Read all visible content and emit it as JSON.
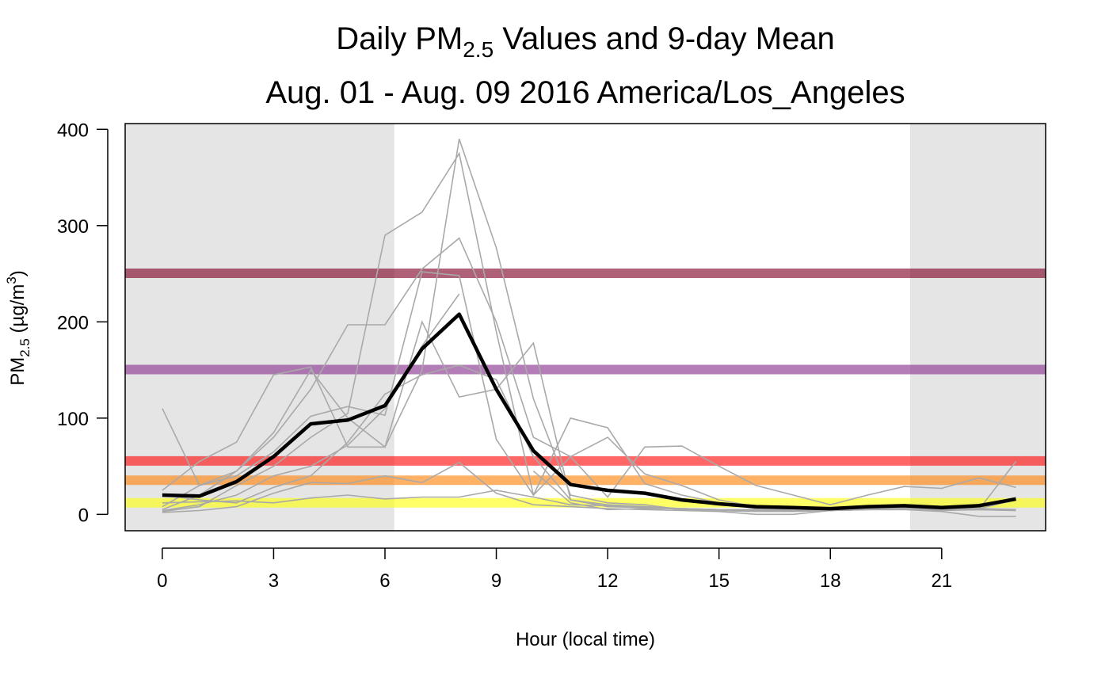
{
  "chart_data": {
    "type": "line",
    "title": {
      "line1_pre": "Daily PM",
      "line1_sub": "2.5",
      "line1_post": " Values and 9-day Mean",
      "line2": "Aug. 01 -  Aug. 09 2016 America/Los_Angeles"
    },
    "xlabel": "Hour (local time)",
    "ylabel": {
      "pre": "PM",
      "sub": "2.5",
      "unit_pre": " (µg/m",
      "unit_sup": "3",
      "unit_post": ")"
    },
    "xlim": [
      -1,
      23.8
    ],
    "ylim": [
      -17,
      406
    ],
    "x_ticks": [
      0,
      3,
      6,
      9,
      12,
      15,
      18,
      21
    ],
    "y_ticks": [
      0,
      100,
      200,
      300,
      400
    ],
    "night_shading": [
      {
        "from": -1,
        "to": 6.25
      },
      {
        "from": 20.15,
        "to": 23.8
      }
    ],
    "aqi_lines": [
      {
        "value": 250.5,
        "color": "#7e0023",
        "opacity": 0.62
      },
      {
        "value": 150.5,
        "color": "#8f3f97",
        "opacity": 0.68
      },
      {
        "value": 55.5,
        "color": "#ff0000",
        "opacity": 0.6
      },
      {
        "value": 35.5,
        "color": "#ff7e00",
        "opacity": 0.6
      },
      {
        "value": 12,
        "color": "#ffff00",
        "opacity": 0.6
      }
    ],
    "hours": [
      0,
      1,
      2,
      3,
      4,
      5,
      6,
      7,
      8,
      9,
      10,
      11,
      12,
      13,
      14,
      15,
      16,
      17,
      18,
      19,
      20,
      21,
      22,
      23
    ],
    "daily_series": [
      [
        110,
        30,
        45,
        85,
        150,
        100,
        70,
        200,
        122,
        130,
        178,
        15,
        10,
        8,
        6,
        5,
        4,
        4,
        5,
        6,
        6,
        5,
        5,
        5
      ],
      [
        25,
        55,
        75,
        145,
        153,
        70,
        70,
        150,
        390,
        277,
        120,
        20,
        12,
        10,
        5,
        4,
        3,
        3,
        4,
        5,
        6,
        5,
        5,
        4
      ],
      [
        5,
        20,
        45,
        80,
        130,
        197,
        197,
        255,
        287,
        200,
        80,
        60,
        80,
        42,
        30,
        15,
        8,
        5,
        6,
        8,
        10,
        8,
        6,
        5
      ],
      [
        8,
        30,
        40,
        65,
        102,
        112,
        103,
        252,
        248,
        78,
        20,
        100,
        90,
        32,
        20,
        12,
        6,
        4,
        5,
        7,
        8,
        6,
        5,
        4
      ],
      [
        3,
        8,
        30,
        50,
        80,
        105,
        290,
        314,
        375,
        190,
        20,
        60,
        18,
        70,
        71,
        50,
        30,
        20,
        10,
        20,
        29,
        27,
        38,
        28
      ],
      [
        4,
        10,
        20,
        40,
        50,
        72,
        110,
        175,
        229,
        null,
        45,
        12,
        5,
        6,
        6,
        5,
        5,
        4,
        4,
        5,
        5,
        4,
        5,
        5
      ],
      [
        2,
        4,
        8,
        22,
        33,
        32,
        40,
        33,
        54,
        22,
        10,
        8,
        6,
        5,
        4,
        3,
        0,
        0,
        4,
        5,
        5,
        3,
        -2,
        -2
      ],
      [
        12,
        13,
        14,
        12,
        17,
        20,
        16,
        18,
        18,
        25,
        18,
        10,
        9,
        8,
        5,
        4,
        3,
        4,
        5,
        6,
        7,
        5,
        5,
        55
      ],
      [
        20,
        15,
        12,
        28,
        40,
        75,
        125,
        145,
        155,
        140,
        60,
        15,
        8,
        7,
        6,
        5,
        5,
        5,
        5,
        6,
        6,
        6,
        6,
        15
      ]
    ],
    "mean_series": [
      20,
      19,
      34,
      60,
      94,
      98,
      113,
      172,
      208,
      130,
      66,
      31,
      25,
      22,
      15,
      11,
      8,
      7,
      6,
      8,
      9,
      7,
      9,
      16
    ],
    "colors": {
      "daily": "#a9a9a9",
      "mean": "#000000",
      "night": "#e5e5e5",
      "axis": "#000000"
    }
  }
}
